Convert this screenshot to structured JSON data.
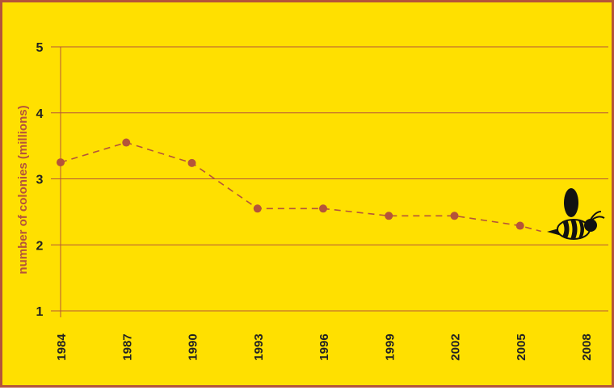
{
  "colors": {
    "background": "#FFE000",
    "border": "#B5543A",
    "series": "#B5543A",
    "grid": "#B5543A",
    "text": "#222222"
  },
  "icon": "bee-icon",
  "chart_data": {
    "type": "line",
    "ylabel": "number of colonies (millions)",
    "xlabel": "",
    "title": "",
    "x_ticks": [
      "1984",
      "1987",
      "1990",
      "1993",
      "1996",
      "1999",
      "2002",
      "2005",
      "2008"
    ],
    "y_ticks": [
      "1",
      "2",
      "3",
      "4",
      "5"
    ],
    "ylim": [
      1,
      5
    ],
    "xlim": [
      1984,
      2008
    ],
    "grid": "horizontal",
    "line_style": "dashed",
    "series": [
      {
        "x": [
          1984,
          1987,
          1990,
          1993,
          1996,
          1999,
          2002,
          2005
        ],
        "values": [
          3.25,
          3.55,
          3.24,
          2.55,
          2.55,
          2.44,
          2.44,
          2.29
        ]
      }
    ]
  }
}
